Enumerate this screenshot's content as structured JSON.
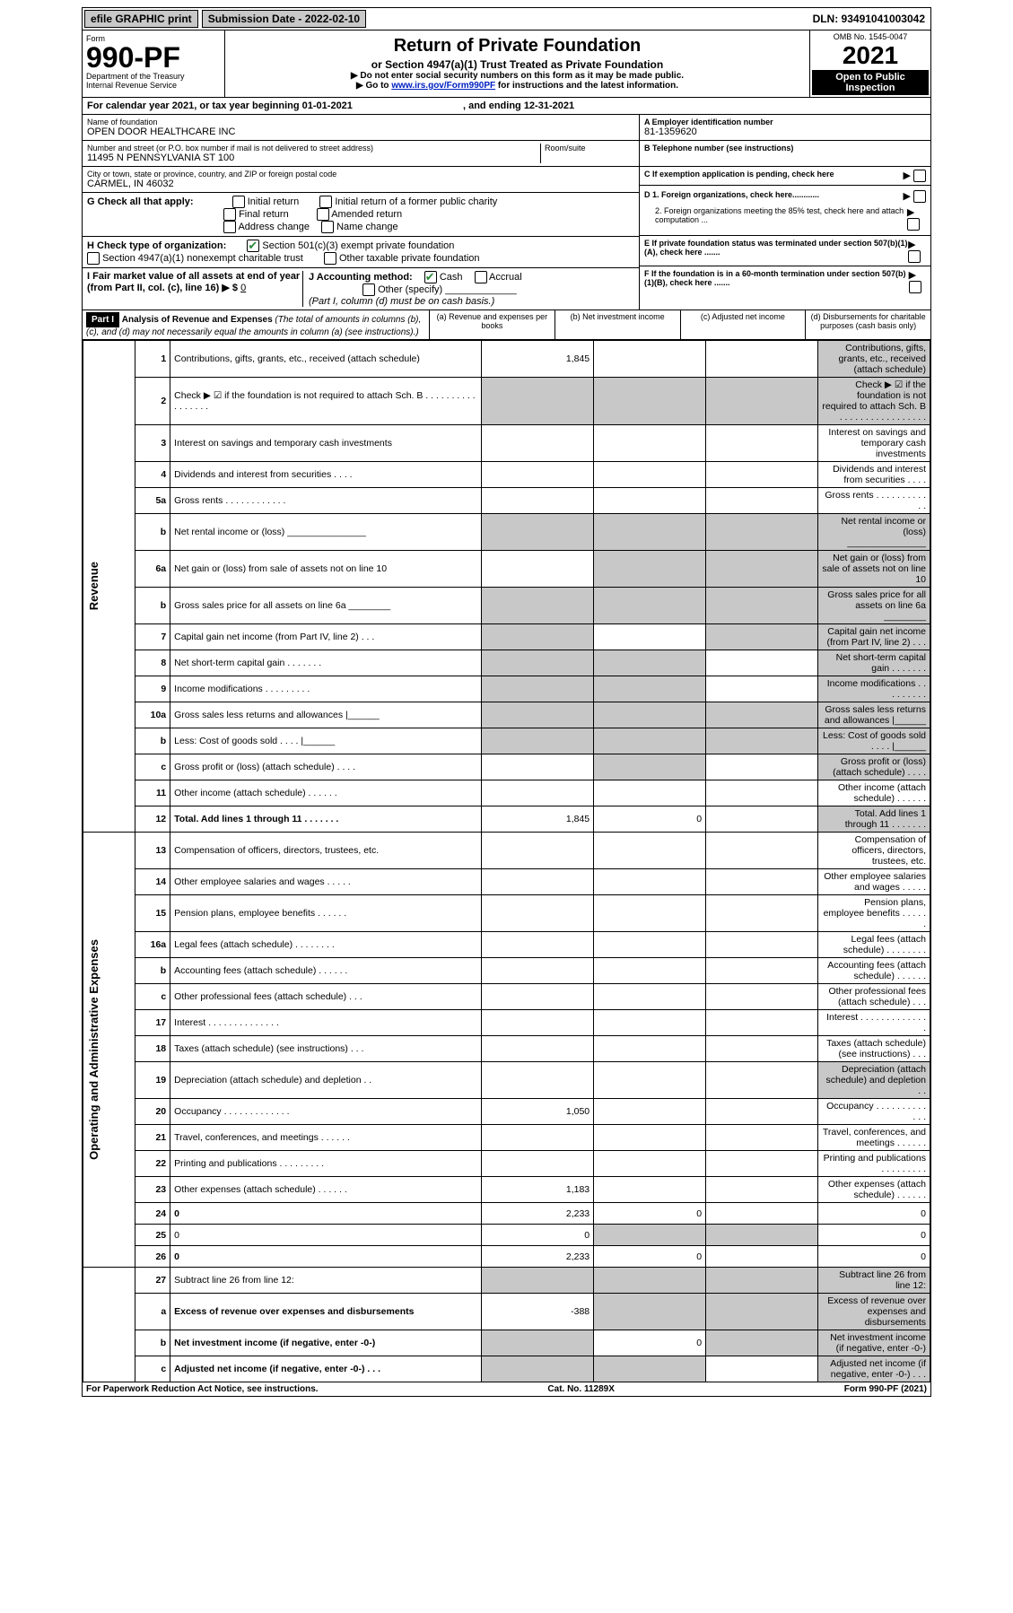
{
  "topbar": {
    "efile": "efile GRAPHIC print",
    "sub_label": "Submission Date - 2022-02-10",
    "dln": "DLN: 93491041003042"
  },
  "header": {
    "form_small": "Form",
    "form_no": "990-PF",
    "dept": "Department of the Treasury",
    "irs": "Internal Revenue Service",
    "title": "Return of Private Foundation",
    "subtitle": "or Section 4947(a)(1) Trust Treated as Private Foundation",
    "instr1": "▶ Do not enter social security numbers on this form as it may be made public.",
    "instr2_pre": "▶ Go to ",
    "instr2_link": "www.irs.gov/Form990PF",
    "instr2_post": " for instructions and the latest information.",
    "omb": "OMB No. 1545-0047",
    "year": "2021",
    "open": "Open to Public Inspection"
  },
  "calyear": "For calendar year 2021, or tax year beginning 01-01-2021",
  "calyear_end": ", and ending 12-31-2021",
  "entity": {
    "name_label": "Name of foundation",
    "name": "OPEN DOOR HEALTHCARE INC",
    "addr_label": "Number and street (or P.O. box number if mail is not delivered to street address)",
    "addr": "11495 N PENNSYLVANIA ST 100",
    "room_label": "Room/suite",
    "city_label": "City or town, state or province, country, and ZIP or foreign postal code",
    "city": "CARMEL, IN  46032",
    "a_label": "A Employer identification number",
    "a_val": "81-1359620",
    "b_label": "B Telephone number (see instructions)",
    "c_label": "C If exemption application is pending, check here",
    "d1": "D 1. Foreign organizations, check here............",
    "d2": "2. Foreign organizations meeting the 85% test, check here and attach computation ...",
    "e": "E  If private foundation status was terminated under section 507(b)(1)(A), check here .......",
    "f": "F  If the foundation is in a 60-month termination under section 507(b)(1)(B), check here .......",
    "g_label": "G Check all that apply:",
    "g_opts": [
      "Initial return",
      "Initial return of a former public charity",
      "Final return",
      "Amended return",
      "Address change",
      "Name change"
    ],
    "h_label": "H Check type of organization:",
    "h_1": "Section 501(c)(3) exempt private foundation",
    "h_2": "Section 4947(a)(1) nonexempt charitable trust",
    "h_3": "Other taxable private foundation",
    "i_label": "I Fair market value of all assets at end of year (from Part II, col. (c), line 16) ▶ $",
    "i_val": "0",
    "j_label": "J Accounting method:",
    "j_cash": "Cash",
    "j_accrual": "Accrual",
    "j_other": "Other (specify)",
    "j_note": "(Part I, column (d) must be on cash basis.)"
  },
  "part1": {
    "label": "Part I",
    "title": "Analysis of Revenue and Expenses",
    "title_note": " (The total of amounts in columns (b), (c), and (d) may not necessarily equal the amounts in column (a) (see instructions).)",
    "cols": {
      "a": "(a) Revenue and expenses per books",
      "b": "(b) Net investment income",
      "c": "(c) Adjusted net income",
      "d": "(d) Disbursements for charitable purposes (cash basis only)"
    }
  },
  "sections": {
    "rev": "Revenue",
    "exp": "Operating and Administrative Expenses"
  },
  "lines": [
    {
      "n": "1",
      "d": "Contributions, gifts, grants, etc., received (attach schedule)",
      "a": "1,845",
      "shade_d": true
    },
    {
      "n": "2",
      "d": "Check ▶ ☑ if the foundation is not required to attach Sch. B     .  .  .  .  .  .  .  .  .  .  .  .  .  .  .  .  .",
      "allshade": true
    },
    {
      "n": "3",
      "d": "Interest on savings and temporary cash investments"
    },
    {
      "n": "4",
      "d": "Dividends and interest from securities   .   .   .   ."
    },
    {
      "n": "5a",
      "d": "Gross rents   .   .   .   .   .   .   .   .   .   .   .   ."
    },
    {
      "n": "b",
      "d": "Net rental income or (loss)  _______________",
      "allshade": true
    },
    {
      "n": "6a",
      "d": "Net gain or (loss) from sale of assets not on line 10",
      "shade_bcd": true
    },
    {
      "n": "b",
      "d": "Gross sales price for all assets on line 6a ________",
      "allshade": true
    },
    {
      "n": "7",
      "d": "Capital gain net income (from Part IV, line 2)   .   .   .",
      "shade_acd": true
    },
    {
      "n": "8",
      "d": "Net short-term capital gain   .   .   .   .   .   .   .",
      "shade_abd": true
    },
    {
      "n": "9",
      "d": "Income modifications   .   .   .   .   .   .   .   .   .",
      "shade_abd": true
    },
    {
      "n": "10a",
      "d": "Gross sales less returns and allowances  |______",
      "allshade": true
    },
    {
      "n": "b",
      "d": "Less: Cost of goods sold   .   .   .   .   |______",
      "allshade": true
    },
    {
      "n": "c",
      "d": "Gross profit or (loss) (attach schedule)   .   .   .   .",
      "shade_bd": true
    },
    {
      "n": "11",
      "d": "Other income (attach schedule)   .   .   .   .   .   ."
    },
    {
      "n": "12",
      "d": "Total. Add lines 1 through 11   .   .   .   .   .   .   .",
      "bold": true,
      "a": "1,845",
      "b": "0",
      "shade_d": true
    }
  ],
  "exp_lines": [
    {
      "n": "13",
      "d": "Compensation of officers, directors, trustees, etc."
    },
    {
      "n": "14",
      "d": "Other employee salaries and wages   .   .   .   .   ."
    },
    {
      "n": "15",
      "d": "Pension plans, employee benefits   .   .   .   .   .   ."
    },
    {
      "n": "16a",
      "d": "Legal fees (attach schedule)   .   .   .   .   .   .   .   ."
    },
    {
      "n": "b",
      "d": "Accounting fees (attach schedule)   .   .   .   .   .   ."
    },
    {
      "n": "c",
      "d": "Other professional fees (attach schedule)   .   .   ."
    },
    {
      "n": "17",
      "d": "Interest   .   .   .   .   .   .   .   .   .   .   .   .   .   ."
    },
    {
      "n": "18",
      "d": "Taxes (attach schedule) (see instructions)   .   .   ."
    },
    {
      "n": "19",
      "d": "Depreciation (attach schedule) and depletion   .   .",
      "shade_d": true
    },
    {
      "n": "20",
      "d": "Occupancy   .   .   .   .   .   .   .   .   .   .   .   .   .",
      "a": "1,050"
    },
    {
      "n": "21",
      "d": "Travel, conferences, and meetings   .   .   .   .   .   ."
    },
    {
      "n": "22",
      "d": "Printing and publications   .   .   .   .   .   .   .   .   ."
    },
    {
      "n": "23",
      "d": "Other expenses (attach schedule)   .   .   .   .   .   .",
      "a": "1,183"
    },
    {
      "n": "24",
      "d": "0",
      "bold": true,
      "a": "2,233",
      "b": "0"
    },
    {
      "n": "25",
      "d": "0",
      "a": "0",
      "shade_bc": true
    },
    {
      "n": "26",
      "d": "0",
      "bold": true,
      "a": "2,233",
      "b": "0"
    }
  ],
  "net_lines": [
    {
      "n": "27",
      "d": "Subtract line 26 from line 12:",
      "allshade": true
    },
    {
      "n": "a",
      "d": "Excess of revenue over expenses and disbursements",
      "bold": true,
      "a": "-388",
      "shade_bcd": true
    },
    {
      "n": "b",
      "d": "Net investment income (if negative, enter -0-)",
      "bold": true,
      "b": "0",
      "shade_acd": true
    },
    {
      "n": "c",
      "d": "Adjusted net income (if negative, enter -0-)   .   .   .",
      "bold": true,
      "shade_abd": true
    }
  ],
  "footer": {
    "left": "For Paperwork Reduction Act Notice, see instructions.",
    "mid": "Cat. No. 11289X",
    "right": "Form 990-PF (2021)"
  },
  "colors": {
    "shade": "#c8c8c8",
    "link": "#0020c2",
    "check": "#2a8a3a"
  }
}
